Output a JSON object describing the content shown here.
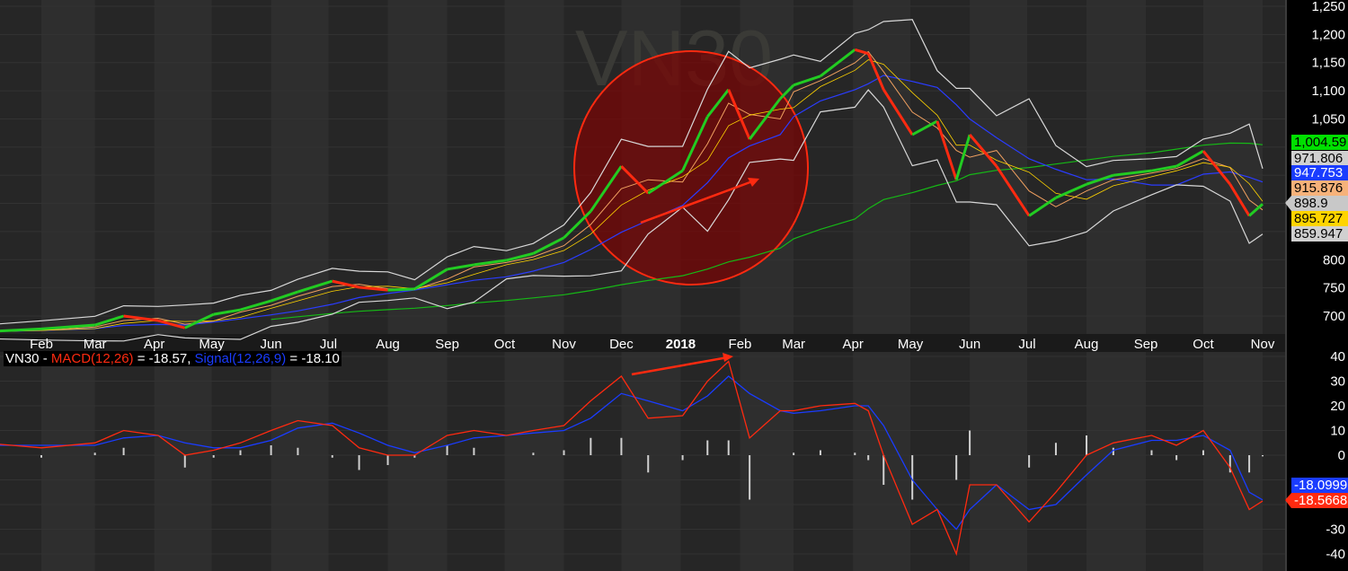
{
  "chart_data": [
    {
      "type": "candlestick-line",
      "watermark": "VN30",
      "ylim": [
        680,
        1260
      ],
      "y_ticks": [
        "1,250",
        "1,200",
        "1,150",
        "1,100",
        "1,050",
        "800",
        "750",
        "700"
      ],
      "y_tick_values": [
        1250,
        1200,
        1150,
        1100,
        1050,
        800,
        750,
        700
      ],
      "x_ticks": [
        {
          "label": "Feb",
          "date": "2017-02-01"
        },
        {
          "label": "Mar",
          "date": "2017-03-01"
        },
        {
          "label": "Apr",
          "date": "2017-04-01"
        },
        {
          "label": "May",
          "date": "2017-05-01"
        },
        {
          "label": "Jun",
          "date": "2017-06-01"
        },
        {
          "label": "Jul",
          "date": "2017-07-01"
        },
        {
          "label": "Aug",
          "date": "2017-08-01"
        },
        {
          "label": "Sep",
          "date": "2017-09-01"
        },
        {
          "label": "Oct",
          "date": "2017-10-01"
        },
        {
          "label": "Nov",
          "date": "2017-11-01"
        },
        {
          "label": "Dec",
          "date": "2017-12-01"
        },
        {
          "label": "2018",
          "date": "2018-01-01"
        },
        {
          "label": "Feb",
          "date": "2018-02-01"
        },
        {
          "label": "Mar",
          "date": "2018-03-01"
        },
        {
          "label": "Apr",
          "date": "2018-04-01"
        },
        {
          "label": "May",
          "date": "2018-05-01"
        },
        {
          "label": "Jun",
          "date": "2018-06-01"
        },
        {
          "label": "Jul",
          "date": "2018-07-01"
        },
        {
          "label": "Aug",
          "date": "2018-08-01"
        },
        {
          "label": "Sep",
          "date": "2018-09-01"
        },
        {
          "label": "Oct",
          "date": "2018-10-01"
        },
        {
          "label": "Nov",
          "date": "2018-11-01"
        }
      ],
      "dates": [
        "2017-01-02",
        "2017-02-01",
        "2017-03-01",
        "2017-03-16",
        "2017-04-03",
        "2017-04-17",
        "2017-05-02",
        "2017-05-16",
        "2017-06-01",
        "2017-06-15",
        "2017-07-03",
        "2017-07-17",
        "2017-08-01",
        "2017-08-15",
        "2017-09-01",
        "2017-09-15",
        "2017-10-02",
        "2017-10-16",
        "2017-11-01",
        "2017-11-15",
        "2017-12-01",
        "2017-12-15",
        "2018-01-02",
        "2018-01-15",
        "2018-01-26",
        "2018-02-06",
        "2018-02-22",
        "2018-03-01",
        "2018-03-15",
        "2018-04-02",
        "2018-04-09",
        "2018-04-17",
        "2018-05-02",
        "2018-05-15",
        "2018-05-25",
        "2018-06-01",
        "2018-06-15",
        "2018-07-02",
        "2018-07-16",
        "2018-08-01",
        "2018-08-15",
        "2018-09-04",
        "2018-09-17",
        "2018-10-01",
        "2018-10-15",
        "2018-10-25",
        "2018-11-01"
      ],
      "close": [
        672,
        677,
        684,
        700,
        692,
        679,
        703,
        711,
        727,
        743,
        762,
        751,
        746,
        748,
        783,
        791,
        799,
        811,
        839,
        886,
        966,
        918,
        958,
        1054,
        1102,
        1014,
        1086,
        1110,
        1126,
        1173,
        1166,
        1102,
        1022,
        1046,
        942,
        1022,
        966,
        878,
        910,
        934,
        950,
        958,
        966,
        993,
        934,
        878,
        898.9
      ],
      "last_values": [
        {
          "label": "1,004.59",
          "bg": "#00e000",
          "fg": "#000000"
        },
        {
          "label": "971.806",
          "bg": "#d0d0d0",
          "fg": "#000000"
        },
        {
          "label": "947.753",
          "bg": "#1a3cff",
          "fg": "#ffffff"
        },
        {
          "label": "915.876",
          "bg": "#f6b27a",
          "fg": "#000000"
        },
        {
          "label": "898.9",
          "bg": "#c8c8c8",
          "fg": "#000000"
        },
        {
          "label": "895.727",
          "bg": "#ffd400",
          "fg": "#000000"
        },
        {
          "label": "859.947",
          "bg": "#d0d0d0",
          "fg": "#000000"
        }
      ],
      "colors": {
        "up": "#22cc22",
        "down": "#ff2a10",
        "ma_long": "#16b816",
        "ma_mid": "#2a3cff",
        "bands": "#d8d8d8",
        "ma_short": "#f0a060",
        "annotation": "#ff2a10"
      }
    },
    {
      "type": "macd",
      "title": {
        "symbol": "VN30 - ",
        "macd_label": "MACD(12,26)",
        "macd_value": " = -18.57, ",
        "signal_label": "Signal(12,26,9)",
        "signal_value": " = -18.10"
      },
      "ylim": [
        -45,
        45
      ],
      "y_ticks": [
        "40",
        "30",
        "20",
        "10",
        "0",
        "-30",
        "-40"
      ],
      "y_tick_values": [
        40,
        30,
        20,
        10,
        0,
        -30,
        -40
      ],
      "macd": [
        5,
        3,
        5,
        10,
        8,
        0,
        2,
        5,
        10,
        14,
        12,
        3,
        0,
        0,
        8,
        10,
        8,
        10,
        12,
        22,
        32,
        15,
        16,
        30,
        38,
        7,
        18,
        18,
        20,
        21,
        18,
        0,
        -28,
        -22,
        -40,
        -12,
        -12,
        -27,
        -15,
        0,
        5,
        8,
        4,
        10,
        -5,
        -22,
        -18.57
      ],
      "signal": [
        4,
        4,
        4,
        7,
        8,
        5,
        3,
        3,
        6,
        11,
        13,
        9,
        4,
        1,
        4,
        7,
        8,
        9,
        10,
        15,
        25,
        22,
        18,
        24,
        32,
        25,
        18,
        17,
        18,
        20,
        20,
        12,
        -10,
        -22,
        -30,
        -22,
        -12,
        -22,
        -20,
        -8,
        2,
        6,
        6,
        8,
        2,
        -15,
        -18.1
      ],
      "last_values": [
        {
          "label": "-18.0999",
          "bg": "#1a3cff",
          "fg": "#ffffff"
        },
        {
          "label": "-18.5668",
          "bg": "#ff2a10",
          "fg": "#ffffff"
        }
      ],
      "colors": {
        "macd": "#ff2a10",
        "signal": "#1a3cff",
        "histogram": "#d0d0d0"
      }
    }
  ]
}
